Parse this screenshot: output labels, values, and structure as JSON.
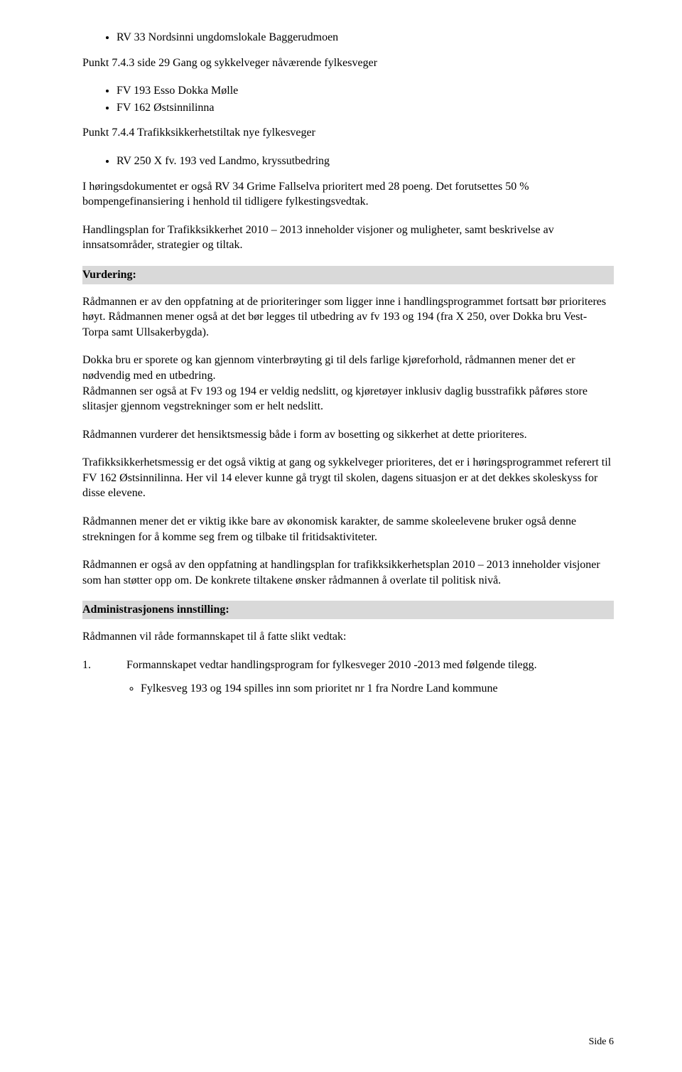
{
  "top_bullet_1": "RV 33 Nordsinni ungdomslokale Baggerudmoen",
  "punkt_743": "Punkt 7.4.3 side 29 Gang og sykkelveger nåværende fylkesveger",
  "bullets_743": {
    "b1": "FV 193 Esso Dokka Mølle",
    "b2": "FV 162 Østsinnilinna"
  },
  "punkt_744": "Punkt 7.4.4 Trafikksikkerhetstiltak nye fylkesveger",
  "bullets_744": {
    "b1": "RV 250 X fv. 193 ved Landmo, kryssutbedring"
  },
  "para1": "I høringsdokumentet er også RV 34 Grime Fallselva prioritert med 28 poeng. Det forutsettes 50 % bompengefinansiering i henhold til tidligere fylkestingsvedtak.",
  "para2": "Handlingsplan for Trafikksikkerhet 2010 – 2013 inneholder visjoner og muligheter, samt beskrivelse av innsatsområder, strategier og tiltak.",
  "vurdering_label": "Vurdering:",
  "para3": "Rådmannen er av den oppfatning at de prioriteringer som ligger inne i handlingsprogrammet fortsatt bør prioriteres høyt. Rådmannen mener også at det bør legges til utbedring av fv 193 og 194 (fra X 250, over Dokka bru Vest- Torpa samt Ullsakerbygda).",
  "para4": "Dokka bru er sporete og kan gjennom vinterbrøyting gi til dels farlige kjøreforhold, rådmannen mener det er nødvendig med en utbedring.",
  "para5": "Rådmannen ser også at Fv 193 og 194 er veldig nedslitt, og kjøretøyer inklusiv daglig busstrafikk påføres store slitasjer gjennom vegstrekninger som er helt nedslitt.",
  "para6": "Rådmannen vurderer det hensiktsmessig både i form av bosetting og sikkerhet at dette prioriteres.",
  "para7": "Trafikksikkerhetsmessig er det også viktig at gang og sykkelveger prioriteres, det er i høringsprogrammet referert til FV 162 Østsinnilinna. Her vil 14 elever kunne gå trygt til skolen, dagens situasjon er at det dekkes skoleskyss for disse elevene.",
  "para8": "Rådmannen mener det er viktig ikke bare av økonomisk karakter, de samme skoleelevene bruker også denne strekningen for å komme seg frem og tilbake til fritidsaktiviteter.",
  "para9": "Rådmannen er også av den oppfatning at handlingsplan for trafikksikkerhetsplan 2010 – 2013 inneholder visjoner som han støtter opp om. De konkrete tiltakene ønsker rådmannen å overlate til politisk nivå.",
  "admin_label": "Administrasjonens innstilling:",
  "para10": "Rådmannen vil råde formannskapet til å fatte slikt vedtak:",
  "num1_n": "1.",
  "num1_t": "Formannskapet vedtar handlingsprogram for fylkesveger 2010 -2013 med følgende tilegg.",
  "sub1": "Fylkesveg 193 og 194 spilles inn som prioritet nr 1 fra Nordre Land kommune",
  "footer": "Side 6"
}
